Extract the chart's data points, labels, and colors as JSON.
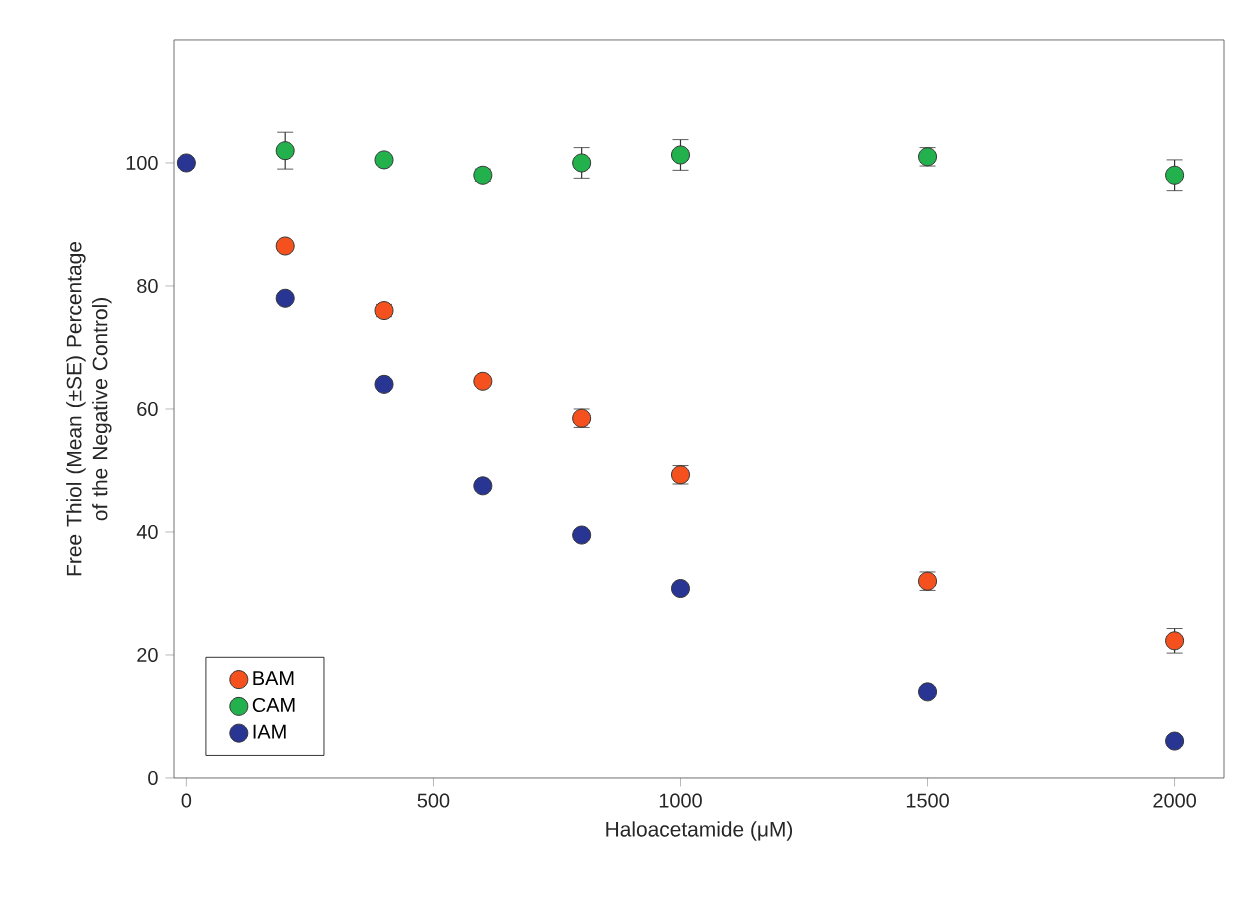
{
  "chart_data": {
    "type": "scatter",
    "xlabel": "Haloacetamide (μM)",
    "ylabel": "Free Thiol (Mean (±SE) Percentage of the Negative Control)",
    "x": [
      0,
      200,
      400,
      600,
      800,
      1000,
      1500,
      2000
    ],
    "series": [
      {
        "name": "BAM",
        "color": "#f4511e",
        "values": [
          null,
          86.5,
          76,
          64.5,
          58.5,
          49.3,
          32,
          22.3
        ],
        "errors": [
          null,
          null,
          1,
          null,
          1.5,
          1.5,
          1.5,
          2
        ]
      },
      {
        "name": "CAM",
        "color": "#22b14c",
        "values": [
          null,
          102,
          100.5,
          98,
          100,
          101.3,
          101,
          98
        ],
        "errors": [
          null,
          3,
          null,
          1,
          2.5,
          2.5,
          1.5,
          2.5
        ]
      },
      {
        "name": "IAM",
        "color": "#283593",
        "values": [
          100,
          78,
          64,
          47.5,
          39.5,
          30.8,
          14,
          6
        ],
        "errors": [
          null,
          null,
          null,
          null,
          null,
          null,
          null,
          null
        ]
      }
    ],
    "xlim": [
      -25,
      2100
    ],
    "ylim": [
      0,
      120
    ],
    "xticks": [
      0,
      500,
      1000,
      1500,
      2000
    ],
    "yticks": [
      0,
      20,
      40,
      60,
      80,
      100
    ],
    "marker": "circle",
    "legend": "bottom left",
    "grid": false
  }
}
